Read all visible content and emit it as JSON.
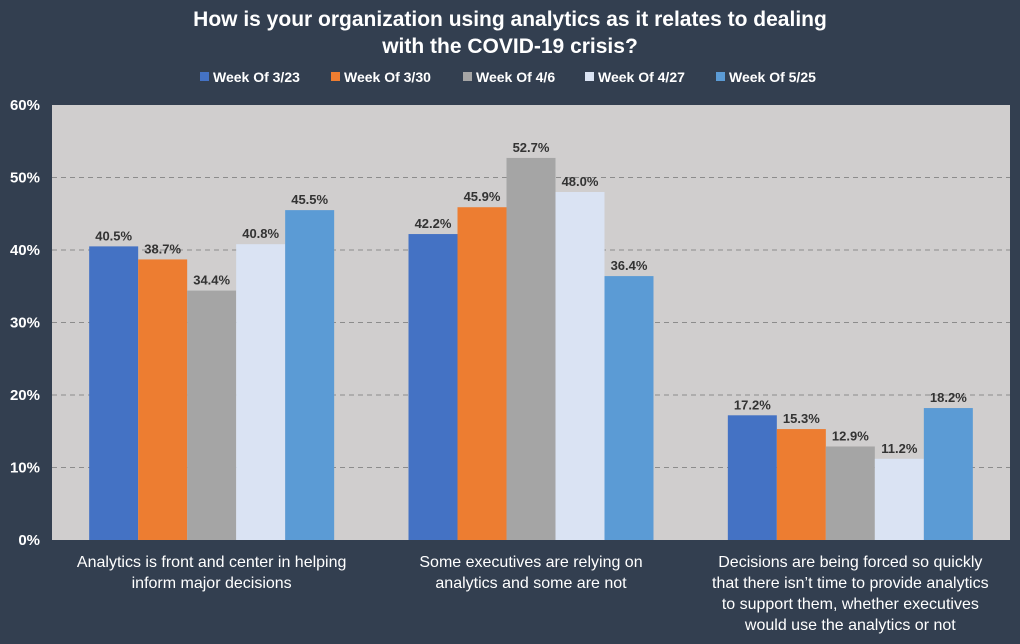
{
  "chart_data": {
    "type": "bar",
    "title": "How is your organization using analytics as it relates to dealing with the COVID-19 crisis?",
    "title_lines": [
      "How is your organization using analytics as it relates to dealing",
      "with the COVID-19 crisis?"
    ],
    "xlabel": "",
    "ylabel": "",
    "ylim": [
      0,
      60
    ],
    "yticks": [
      "0%",
      "10%",
      "20%",
      "30%",
      "40%",
      "50%",
      "60%"
    ],
    "grid": true,
    "legend_position": "top",
    "categories": [
      "Analytics is front and center in helping inform major decisions",
      "Some executives are relying on analytics and some are not",
      "Decisions are being forced so quickly that there isn't time to provide analytics to support them, whether executives would use the analytics or not"
    ],
    "category_lines": [
      [
        "Analytics is front and center in helping",
        "inform major decisions"
      ],
      [
        "Some executives are relying on",
        "analytics and some are not"
      ],
      [
        "Decisions are being forced so quickly",
        "that there isn’t time to provide analytics",
        "to support them, whether executives",
        "would use the analytics or not"
      ]
    ],
    "series": [
      {
        "name": "Week Of 3/23",
        "color": "#4472c4",
        "values": [
          40.5,
          42.2,
          17.2
        ],
        "labels": [
          "40.5%",
          "42.2%",
          "17.2%"
        ]
      },
      {
        "name": "Week Of 3/30",
        "color": "#ed7d31",
        "values": [
          38.7,
          45.9,
          15.3
        ],
        "labels": [
          "38.7%",
          "45.9%",
          "15.3%"
        ]
      },
      {
        "name": "Week Of 4/6",
        "color": "#a5a5a5",
        "values": [
          34.4,
          52.7,
          12.9
        ],
        "labels": [
          "34.4%",
          "52.7%",
          "12.9%"
        ]
      },
      {
        "name": "Week Of 4/27",
        "color": "#dae3f3",
        "values": [
          40.8,
          48.0,
          11.2
        ],
        "labels": [
          "40.8%",
          "48.0%",
          "11.2%"
        ]
      },
      {
        "name": "Week Of 5/25",
        "color": "#5b9bd5",
        "values": [
          45.5,
          36.4,
          18.2
        ],
        "labels": [
          "45.5%",
          "36.4%",
          "18.2%"
        ]
      }
    ],
    "colors": {
      "background": "#333f50",
      "plot_background": "#d0cece",
      "gridline": "#8c8c8c"
    }
  }
}
